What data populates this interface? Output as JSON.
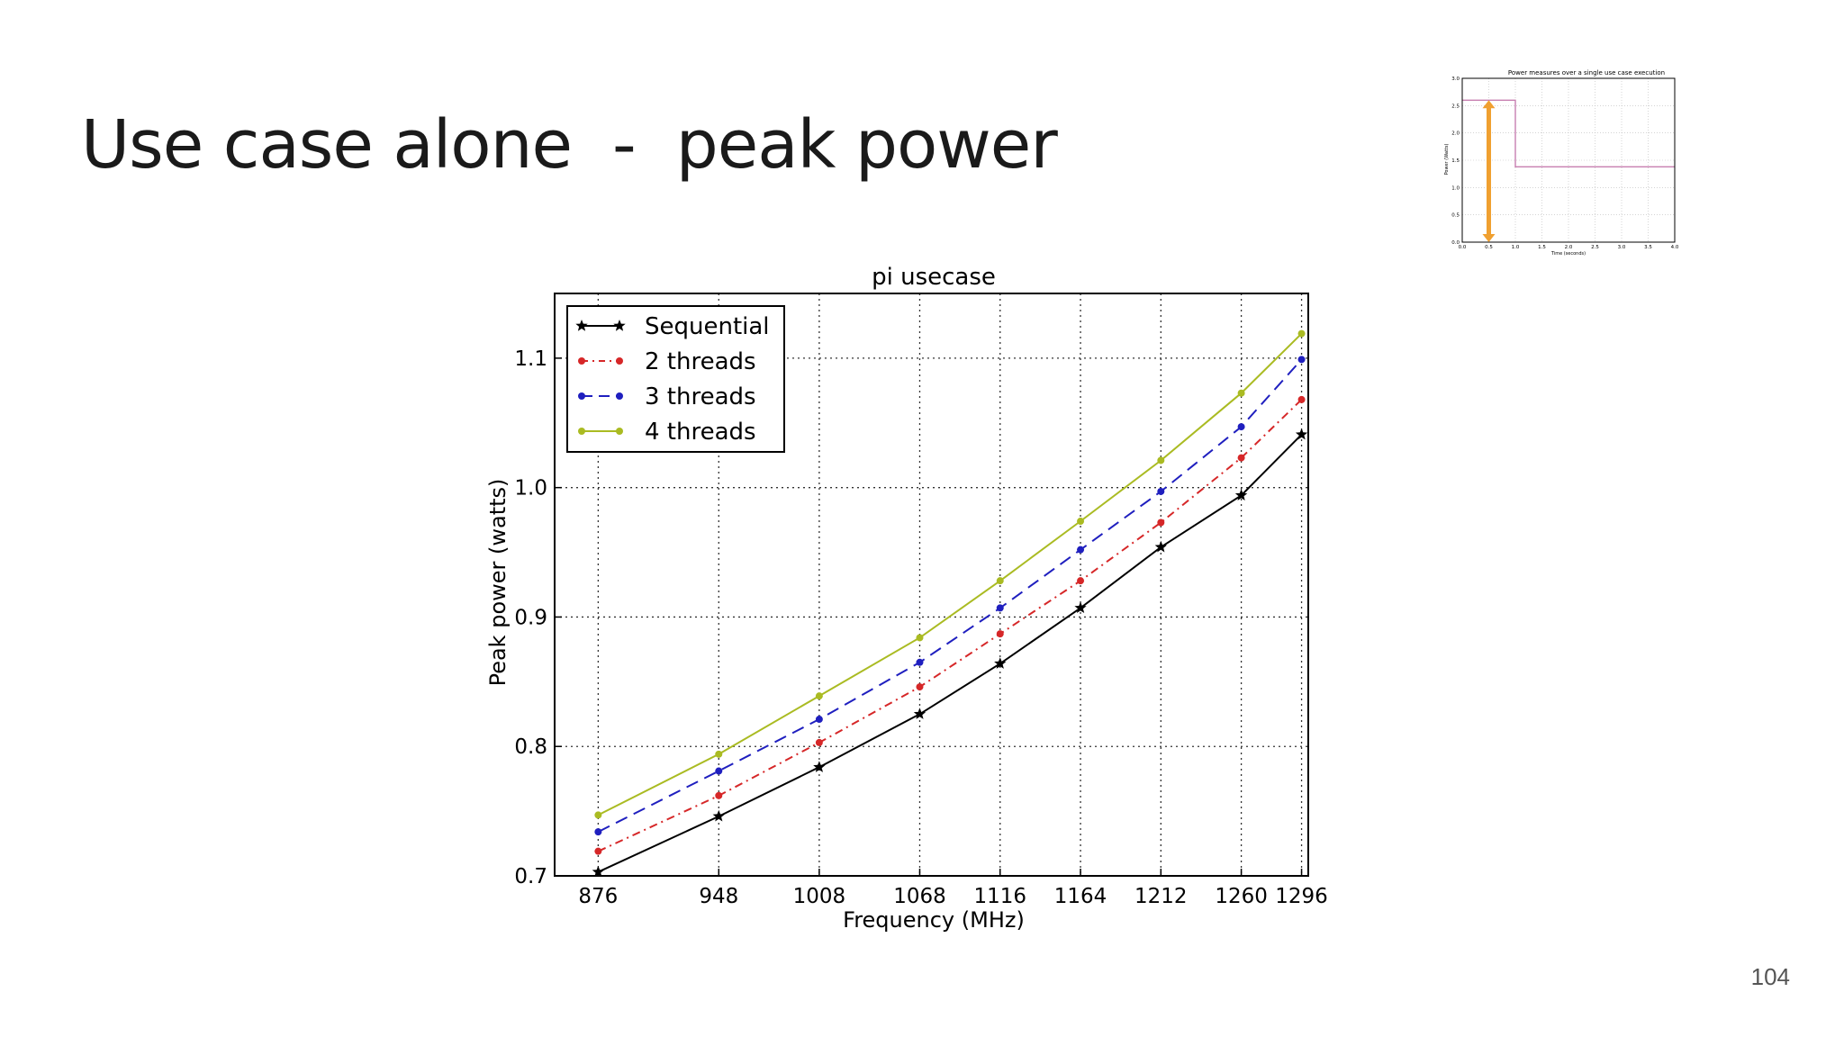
{
  "slide": {
    "title": "Use case alone  -  peak power",
    "page_number": "104"
  },
  "chart_data": [
    {
      "type": "line",
      "title": "pi usecase",
      "xlabel": "Frequency (MHz)",
      "ylabel": "Peak power (watts)",
      "categories": [
        876,
        948,
        1008,
        1068,
        1116,
        1164,
        1212,
        1260,
        1296
      ],
      "xlim": [
        850,
        1300
      ],
      "ylim": [
        0.7,
        1.15
      ],
      "yticks": [
        "0.7",
        "0.8",
        "0.9",
        "1.0",
        "1.1"
      ],
      "grid": true,
      "legend_position": "top-left",
      "series": [
        {
          "name": "Sequential",
          "color": "#000000",
          "marker": "star",
          "line_style": "solid",
          "values": [
            0.703,
            0.746,
            0.784,
            0.825,
            0.864,
            0.907,
            0.954,
            0.994,
            1.041
          ]
        },
        {
          "name": "2 threads",
          "color": "#d62728",
          "marker": "dot",
          "line_style": "dash-dot",
          "values": [
            0.719,
            0.762,
            0.803,
            0.846,
            0.887,
            0.928,
            0.973,
            1.023,
            1.068
          ]
        },
        {
          "name": "3 threads",
          "color": "#1f1fbf",
          "marker": "dot",
          "line_style": "dashed",
          "values": [
            0.734,
            0.781,
            0.821,
            0.865,
            0.907,
            0.952,
            0.997,
            1.047,
            1.099
          ]
        },
        {
          "name": "4 threads",
          "color": "#aabb22",
          "marker": "dot",
          "line_style": "solid",
          "values": [
            0.747,
            0.794,
            0.839,
            0.884,
            0.928,
            0.974,
            1.021,
            1.073,
            1.119
          ]
        }
      ]
    },
    {
      "type": "line",
      "title": "Power measures over a single use case execution",
      "xlabel": "Time (seconds)",
      "ylabel": "Power (Watts)",
      "xlim": [
        0,
        4
      ],
      "ylim": [
        0,
        3
      ],
      "xticks": [
        "0.0",
        "0.5",
        "1.0",
        "1.5",
        "2.0",
        "2.5",
        "3.0",
        "3.5",
        "4.0"
      ],
      "yticks": [
        "0.0",
        "0.5",
        "1.0",
        "1.5",
        "2.0",
        "2.5",
        "3.0"
      ],
      "grid": true,
      "series": [
        {
          "color": "#c77fb0",
          "x": [
            0,
            1.0,
            1.0,
            4.0
          ],
          "y": [
            2.6,
            2.6,
            1.38,
            1.38
          ]
        }
      ],
      "annotation": {
        "type": "double-arrow",
        "color": "#f0a030",
        "x": 0.5,
        "y_range": [
          0,
          2.6
        ]
      }
    }
  ]
}
